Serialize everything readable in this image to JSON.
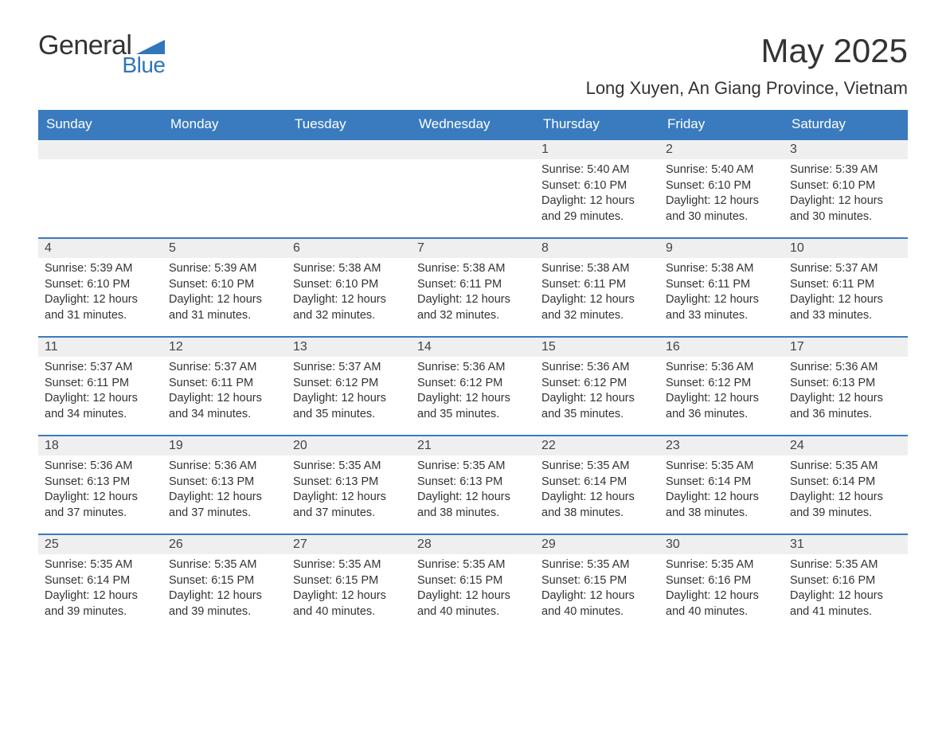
{
  "logo": {
    "text_general": "General",
    "text_blue": "Blue",
    "color_general": "#333333",
    "color_blue": "#2f76ba",
    "shape_color": "#2f76ba"
  },
  "header": {
    "month_title": "May 2025",
    "location": "Long Xuyen, An Giang Province, Vietnam"
  },
  "styling": {
    "header_bg": "#3a7bbf",
    "header_text": "#ffffff",
    "daynum_bg": "#efefef",
    "week_top_border": "#3a7bbf",
    "body_text": "#333333",
    "page_bg": "#ffffff",
    "dow_fontsize": 17,
    "daynum_fontsize": 16,
    "body_fontsize": 14.5,
    "title_fontsize": 42,
    "location_fontsize": 22
  },
  "days_of_week": [
    "Sunday",
    "Monday",
    "Tuesday",
    "Wednesday",
    "Thursday",
    "Friday",
    "Saturday"
  ],
  "labels": {
    "sunrise": "Sunrise:",
    "sunset": "Sunset:",
    "daylight": "Daylight:",
    "hours_word": "hours",
    "and_word": "and",
    "minutes_word": "minutes."
  },
  "weeks": [
    [
      null,
      null,
      null,
      null,
      {
        "n": "1",
        "sunrise": "5:40 AM",
        "sunset": "6:10 PM",
        "dl_h": "12",
        "dl_m": "29"
      },
      {
        "n": "2",
        "sunrise": "5:40 AM",
        "sunset": "6:10 PM",
        "dl_h": "12",
        "dl_m": "30"
      },
      {
        "n": "3",
        "sunrise": "5:39 AM",
        "sunset": "6:10 PM",
        "dl_h": "12",
        "dl_m": "30"
      }
    ],
    [
      {
        "n": "4",
        "sunrise": "5:39 AM",
        "sunset": "6:10 PM",
        "dl_h": "12",
        "dl_m": "31"
      },
      {
        "n": "5",
        "sunrise": "5:39 AM",
        "sunset": "6:10 PM",
        "dl_h": "12",
        "dl_m": "31"
      },
      {
        "n": "6",
        "sunrise": "5:38 AM",
        "sunset": "6:10 PM",
        "dl_h": "12",
        "dl_m": "32"
      },
      {
        "n": "7",
        "sunrise": "5:38 AM",
        "sunset": "6:11 PM",
        "dl_h": "12",
        "dl_m": "32"
      },
      {
        "n": "8",
        "sunrise": "5:38 AM",
        "sunset": "6:11 PM",
        "dl_h": "12",
        "dl_m": "32"
      },
      {
        "n": "9",
        "sunrise": "5:38 AM",
        "sunset": "6:11 PM",
        "dl_h": "12",
        "dl_m": "33"
      },
      {
        "n": "10",
        "sunrise": "5:37 AM",
        "sunset": "6:11 PM",
        "dl_h": "12",
        "dl_m": "33"
      }
    ],
    [
      {
        "n": "11",
        "sunrise": "5:37 AM",
        "sunset": "6:11 PM",
        "dl_h": "12",
        "dl_m": "34"
      },
      {
        "n": "12",
        "sunrise": "5:37 AM",
        "sunset": "6:11 PM",
        "dl_h": "12",
        "dl_m": "34"
      },
      {
        "n": "13",
        "sunrise": "5:37 AM",
        "sunset": "6:12 PM",
        "dl_h": "12",
        "dl_m": "35"
      },
      {
        "n": "14",
        "sunrise": "5:36 AM",
        "sunset": "6:12 PM",
        "dl_h": "12",
        "dl_m": "35"
      },
      {
        "n": "15",
        "sunrise": "5:36 AM",
        "sunset": "6:12 PM",
        "dl_h": "12",
        "dl_m": "35"
      },
      {
        "n": "16",
        "sunrise": "5:36 AM",
        "sunset": "6:12 PM",
        "dl_h": "12",
        "dl_m": "36"
      },
      {
        "n": "17",
        "sunrise": "5:36 AM",
        "sunset": "6:13 PM",
        "dl_h": "12",
        "dl_m": "36"
      }
    ],
    [
      {
        "n": "18",
        "sunrise": "5:36 AM",
        "sunset": "6:13 PM",
        "dl_h": "12",
        "dl_m": "37"
      },
      {
        "n": "19",
        "sunrise": "5:36 AM",
        "sunset": "6:13 PM",
        "dl_h": "12",
        "dl_m": "37"
      },
      {
        "n": "20",
        "sunrise": "5:35 AM",
        "sunset": "6:13 PM",
        "dl_h": "12",
        "dl_m": "37"
      },
      {
        "n": "21",
        "sunrise": "5:35 AM",
        "sunset": "6:13 PM",
        "dl_h": "12",
        "dl_m": "38"
      },
      {
        "n": "22",
        "sunrise": "5:35 AM",
        "sunset": "6:14 PM",
        "dl_h": "12",
        "dl_m": "38"
      },
      {
        "n": "23",
        "sunrise": "5:35 AM",
        "sunset": "6:14 PM",
        "dl_h": "12",
        "dl_m": "38"
      },
      {
        "n": "24",
        "sunrise": "5:35 AM",
        "sunset": "6:14 PM",
        "dl_h": "12",
        "dl_m": "39"
      }
    ],
    [
      {
        "n": "25",
        "sunrise": "5:35 AM",
        "sunset": "6:14 PM",
        "dl_h": "12",
        "dl_m": "39"
      },
      {
        "n": "26",
        "sunrise": "5:35 AM",
        "sunset": "6:15 PM",
        "dl_h": "12",
        "dl_m": "39"
      },
      {
        "n": "27",
        "sunrise": "5:35 AM",
        "sunset": "6:15 PM",
        "dl_h": "12",
        "dl_m": "40"
      },
      {
        "n": "28",
        "sunrise": "5:35 AM",
        "sunset": "6:15 PM",
        "dl_h": "12",
        "dl_m": "40"
      },
      {
        "n": "29",
        "sunrise": "5:35 AM",
        "sunset": "6:15 PM",
        "dl_h": "12",
        "dl_m": "40"
      },
      {
        "n": "30",
        "sunrise": "5:35 AM",
        "sunset": "6:16 PM",
        "dl_h": "12",
        "dl_m": "40"
      },
      {
        "n": "31",
        "sunrise": "5:35 AM",
        "sunset": "6:16 PM",
        "dl_h": "12",
        "dl_m": "41"
      }
    ]
  ]
}
